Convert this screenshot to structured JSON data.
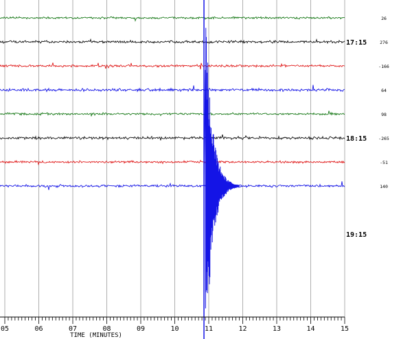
{
  "chart_data": {
    "type": "line",
    "title": "",
    "xlabel": "TIME (MINUTES)",
    "ylabel": "",
    "x_ticks": [
      "05",
      "06",
      "07",
      "08",
      "09",
      "10",
      "11",
      "12",
      "13",
      "14",
      "15"
    ],
    "xlim": [
      5,
      15
    ],
    "grid": "vertical",
    "hour_labels": [
      {
        "label": "17:15",
        "trace_index": 1
      },
      {
        "label": "18:15",
        "trace_index": 5
      },
      {
        "label": "19:15",
        "trace_index": 9
      }
    ],
    "series": [
      {
        "offset": "26",
        "color": "#1a7a1a",
        "noise": 0.45
      },
      {
        "offset": "276",
        "color": "#111111",
        "noise": 0.55
      },
      {
        "offset": "-166",
        "color": "#e01b1b",
        "noise": 0.5
      },
      {
        "offset": "64",
        "color": "#1414e6",
        "noise": 0.6
      },
      {
        "offset": "98",
        "color": "#1a7a1a",
        "noise": 0.5
      },
      {
        "offset": "-265",
        "color": "#111111",
        "noise": 0.6
      },
      {
        "offset": "-51",
        "color": "#e01b1b",
        "noise": 0.5
      },
      {
        "offset": "140",
        "color": "#1414e6",
        "noise": 0.55
      }
    ],
    "event": {
      "time_minutes": 10.9,
      "trace_index": 7,
      "color": "#1414e6"
    }
  }
}
